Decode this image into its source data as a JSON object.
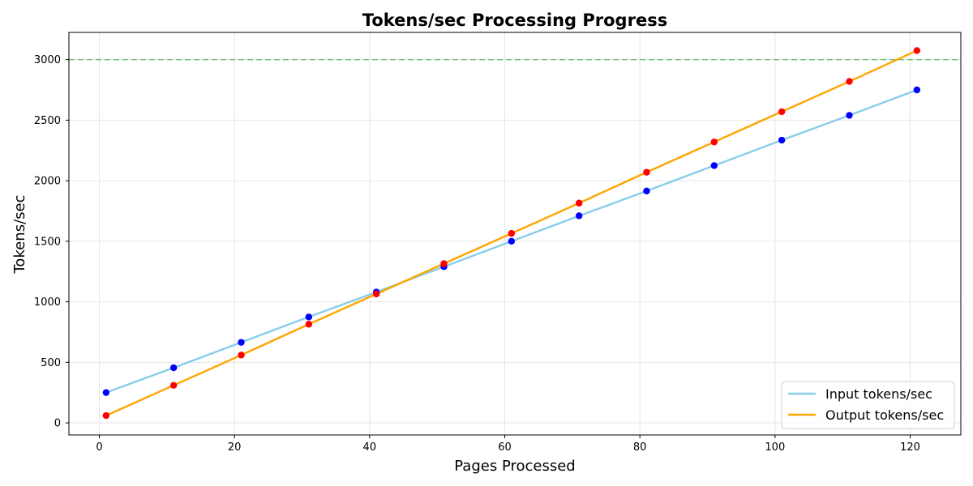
{
  "chart_data": {
    "type": "line",
    "title": "Tokens/sec Processing Progress",
    "xlabel": "Pages Processed",
    "ylabel": "Tokens/sec",
    "xlim": [
      -4.5,
      127.5
    ],
    "ylim": [
      -100,
      3225
    ],
    "xticks": [
      0,
      20,
      40,
      60,
      80,
      100,
      120
    ],
    "yticks": [
      0,
      500,
      1000,
      1500,
      2000,
      2500,
      3000
    ],
    "grid": true,
    "legend_position": "lower-right",
    "x": [
      1,
      11,
      21,
      31,
      41,
      51,
      61,
      71,
      81,
      91,
      101,
      111,
      121
    ],
    "series": [
      {
        "name": "Input tokens/sec",
        "color": "#87ceeb",
        "marker_color": "#0000ff",
        "values": [
          250,
          455,
          665,
          875,
          1080,
          1290,
          1500,
          1710,
          1915,
          2125,
          2335,
          2540,
          2750
        ]
      },
      {
        "name": "Output tokens/sec",
        "color": "#ffa500",
        "marker_color": "#ff0000",
        "values": [
          60,
          310,
          560,
          815,
          1065,
          1315,
          1565,
          1815,
          2070,
          2320,
          2570,
          2820,
          3075
        ]
      }
    ],
    "reference_line": {
      "y": 3000,
      "color": "#5cb85c",
      "style": "dashed"
    }
  }
}
